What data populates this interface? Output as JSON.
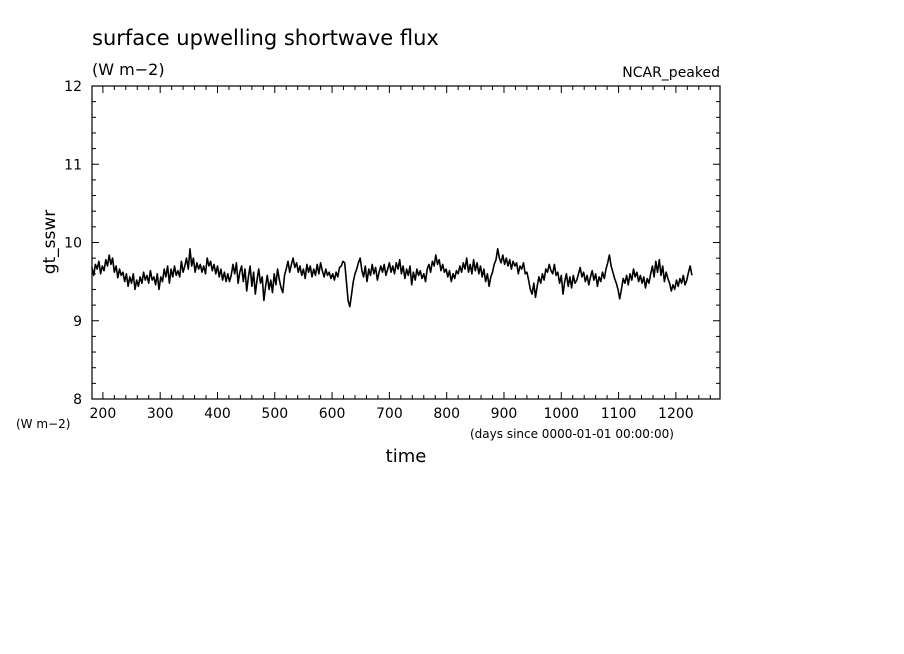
{
  "chart_data": {
    "type": "line",
    "title": "surface upwelling shortwave flux",
    "units_label": "(W m−2)",
    "tag": "NCAR_peaked",
    "ylabel": "gt_sswr",
    "yunits": "(W m−2)",
    "xlabel": "time",
    "xunits": "(days since 0000-01-01 00:00:00)",
    "xlim": [
      181,
      1277
    ],
    "ylim": [
      8,
      12
    ],
    "xticks": [
      200,
      300,
      400,
      500,
      600,
      700,
      800,
      900,
      1000,
      1100,
      1200
    ],
    "yticks": [
      8,
      9,
      10,
      11,
      12
    ],
    "x_step": 3,
    "series": [
      {
        "values": [
          9.68,
          9.58,
          9.72,
          9.66,
          9.76,
          9.6,
          9.7,
          9.64,
          9.78,
          9.7,
          9.84,
          9.72,
          9.8,
          9.62,
          9.7,
          9.55,
          9.66,
          9.58,
          9.62,
          9.5,
          9.6,
          9.44,
          9.56,
          9.48,
          9.6,
          9.4,
          9.52,
          9.44,
          9.56,
          9.48,
          9.62,
          9.52,
          9.58,
          9.48,
          9.64,
          9.52,
          9.56,
          9.46,
          9.6,
          9.4,
          9.56,
          9.5,
          9.66,
          9.56,
          9.7,
          9.48,
          9.66,
          9.56,
          9.7,
          9.58,
          9.64,
          9.56,
          9.76,
          9.62,
          9.7,
          9.8,
          9.66,
          9.92,
          9.7,
          9.8,
          9.62,
          9.74,
          9.66,
          9.72,
          9.62,
          9.7,
          9.6,
          9.8,
          9.7,
          9.76,
          9.64,
          9.72,
          9.6,
          9.7,
          9.56,
          9.66,
          9.52,
          9.62,
          9.5,
          9.6,
          9.5,
          9.58,
          9.72,
          9.6,
          9.74,
          9.48,
          9.62,
          9.7,
          9.5,
          9.66,
          9.38,
          9.56,
          9.7,
          9.44,
          9.62,
          9.34,
          9.52,
          9.66,
          9.48,
          9.56,
          9.26,
          9.44,
          9.58,
          9.4,
          9.52,
          9.36,
          9.6,
          9.46,
          9.66,
          9.52,
          9.42,
          9.36,
          9.58,
          9.66,
          9.76,
          9.62,
          9.72,
          9.8,
          9.68,
          9.74,
          9.62,
          9.7,
          9.58,
          9.66,
          9.54,
          9.72,
          9.62,
          9.7,
          9.56,
          9.66,
          9.58,
          9.72,
          9.6,
          9.74,
          9.64,
          9.56,
          9.66,
          9.58,
          9.62,
          9.54,
          9.6,
          9.52,
          9.62,
          9.56,
          9.68,
          9.7,
          9.76,
          9.74,
          9.5,
          9.26,
          9.18,
          9.34,
          9.5,
          9.6,
          9.66,
          9.74,
          9.8,
          9.64,
          9.56,
          9.7,
          9.5,
          9.66,
          9.58,
          9.72,
          9.6,
          9.68,
          9.52,
          9.62,
          9.7,
          9.62,
          9.72,
          9.58,
          9.66,
          9.74,
          9.62,
          9.7,
          9.6,
          9.74,
          9.66,
          9.78,
          9.6,
          9.7,
          9.54,
          9.66,
          9.58,
          9.7,
          9.46,
          9.62,
          9.52,
          9.66,
          9.58,
          9.64,
          9.54,
          9.6,
          9.5,
          9.66,
          9.72,
          9.62,
          9.76,
          9.7,
          9.84,
          9.72,
          9.78,
          9.64,
          9.72,
          9.62,
          9.66,
          9.56,
          9.64,
          9.5,
          9.6,
          9.54,
          9.64,
          9.6,
          9.7,
          9.62,
          9.74,
          9.66,
          9.8,
          9.62,
          9.72,
          9.6,
          9.78,
          9.64,
          9.74,
          9.6,
          9.7,
          9.56,
          9.66,
          9.5,
          9.6,
          9.44,
          9.56,
          9.62,
          9.72,
          9.78,
          9.92,
          9.8,
          9.74,
          9.84,
          9.72,
          9.8,
          9.7,
          9.78,
          9.66,
          9.76,
          9.7,
          9.74,
          9.6,
          9.7,
          9.66,
          9.74,
          9.6,
          9.62,
          9.52,
          9.4,
          9.34,
          9.48,
          9.3,
          9.44,
          9.56,
          9.48,
          9.6,
          9.52,
          9.66,
          9.62,
          9.72,
          9.64,
          9.6,
          9.72,
          9.58,
          9.62,
          9.48,
          9.58,
          9.34,
          9.5,
          9.6,
          9.44,
          9.56,
          9.42,
          9.58,
          9.48,
          9.52,
          9.6,
          9.68,
          9.56,
          9.62,
          9.5,
          9.58,
          9.46,
          9.56,
          9.64,
          9.52,
          9.6,
          9.44,
          9.56,
          9.5,
          9.62,
          9.54,
          9.66,
          9.74,
          9.84,
          9.7,
          9.62,
          9.54,
          9.48,
          9.4,
          9.28,
          9.4,
          9.54,
          9.48,
          9.58,
          9.46,
          9.6,
          9.52,
          9.66,
          9.56,
          9.62,
          9.5,
          9.58,
          9.48,
          9.56,
          9.42,
          9.54,
          9.48,
          9.6,
          9.7,
          9.56,
          9.76,
          9.62,
          9.78,
          9.58,
          9.7,
          9.5,
          9.62,
          9.54,
          9.48,
          9.38,
          9.46,
          9.4,
          9.52,
          9.44,
          9.54,
          9.48,
          9.58,
          9.46,
          9.52,
          9.62,
          9.7,
          9.58
        ]
      }
    ]
  }
}
